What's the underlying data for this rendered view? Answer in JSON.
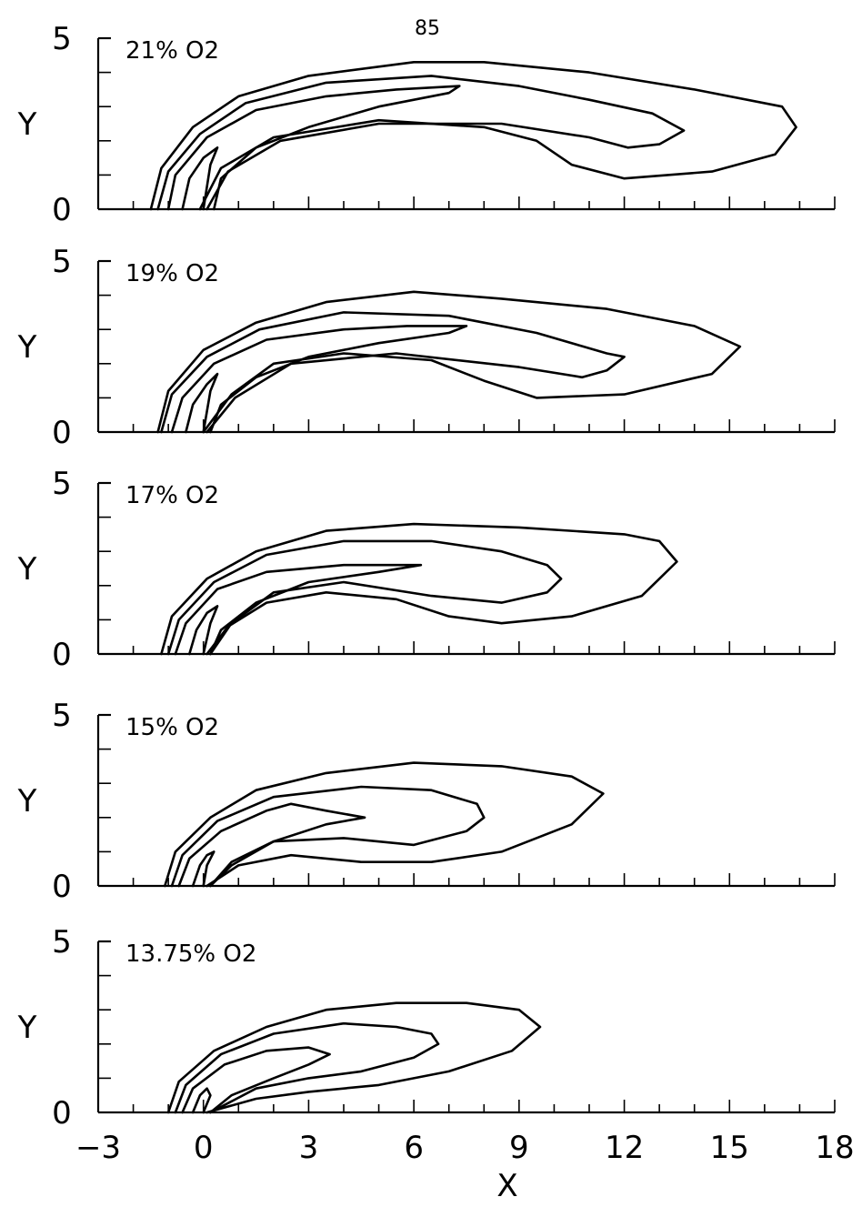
{
  "page_number": "85",
  "chart_data": [
    {
      "type": "contour",
      "annotation": "21% O2",
      "xlabel": "X",
      "ylabel": "Y",
      "xlim": [
        -3,
        18
      ],
      "ylim": [
        0,
        5
      ],
      "xticks": [
        -3,
        0,
        3,
        6,
        9,
        12,
        15,
        18
      ],
      "yticks": [
        0,
        5
      ],
      "contours": [
        [
          [
            -1.5,
            0
          ],
          [
            -1.2,
            1.2
          ],
          [
            -0.3,
            2.4
          ],
          [
            1.0,
            3.3
          ],
          [
            3.0,
            3.9
          ],
          [
            6.0,
            4.3
          ],
          [
            8.0,
            4.3
          ],
          [
            11.0,
            4.0
          ],
          [
            14.0,
            3.5
          ],
          [
            16.5,
            3.0
          ],
          [
            16.9,
            2.4
          ],
          [
            16.3,
            1.6
          ],
          [
            14.5,
            1.1
          ],
          [
            12.0,
            0.9
          ],
          [
            10.5,
            1.3
          ],
          [
            9.5,
            2.0
          ],
          [
            8.0,
            2.4
          ],
          [
            5.0,
            2.6
          ],
          [
            2.0,
            2.1
          ],
          [
            0.5,
            1.2
          ],
          [
            -0.1,
            0
          ]
        ],
        [
          [
            -1.3,
            0
          ],
          [
            -1.0,
            1.1
          ],
          [
            -0.1,
            2.2
          ],
          [
            1.2,
            3.1
          ],
          [
            3.5,
            3.7
          ],
          [
            6.5,
            3.9
          ],
          [
            9.0,
            3.6
          ],
          [
            11.0,
            3.2
          ],
          [
            12.8,
            2.8
          ],
          [
            13.7,
            2.3
          ],
          [
            13.0,
            1.9
          ],
          [
            12.1,
            1.8
          ],
          [
            11.0,
            2.1
          ],
          [
            8.5,
            2.5
          ],
          [
            5.0,
            2.5
          ],
          [
            2.2,
            2.0
          ],
          [
            0.7,
            1.1
          ],
          [
            0.1,
            0
          ]
        ],
        [
          [
            -1.0,
            0
          ],
          [
            -0.8,
            1.0
          ],
          [
            0.1,
            2.1
          ],
          [
            1.5,
            2.9
          ],
          [
            3.5,
            3.3
          ],
          [
            5.5,
            3.5
          ],
          [
            7.3,
            3.6
          ],
          [
            7.0,
            3.4
          ],
          [
            5.0,
            3.0
          ],
          [
            3.0,
            2.4
          ],
          [
            1.5,
            1.8
          ],
          [
            0.5,
            0.9
          ],
          [
            0.3,
            0
          ]
        ],
        [
          [
            -0.6,
            0
          ],
          [
            -0.4,
            0.9
          ],
          [
            0.0,
            1.5
          ],
          [
            0.4,
            1.8
          ],
          [
            0.2,
            1.3
          ],
          [
            0.0,
            0
          ]
        ]
      ]
    },
    {
      "type": "contour",
      "annotation": "19% O2",
      "xlabel": "X",
      "ylabel": "Y",
      "xlim": [
        -3,
        18
      ],
      "ylim": [
        0,
        5
      ],
      "xticks": [
        -3,
        0,
        3,
        6,
        9,
        12,
        15,
        18
      ],
      "yticks": [
        0,
        5
      ],
      "contours": [
        [
          [
            -1.3,
            0
          ],
          [
            -1.0,
            1.2
          ],
          [
            0.0,
            2.4
          ],
          [
            1.5,
            3.2
          ],
          [
            3.5,
            3.8
          ],
          [
            6.0,
            4.1
          ],
          [
            8.5,
            3.9
          ],
          [
            11.5,
            3.6
          ],
          [
            14.0,
            3.1
          ],
          [
            15.3,
            2.5
          ],
          [
            14.5,
            1.7
          ],
          [
            12.0,
            1.1
          ],
          [
            9.5,
            1.0
          ],
          [
            8.0,
            1.5
          ],
          [
            6.5,
            2.1
          ],
          [
            4.0,
            2.3
          ],
          [
            2.0,
            2.0
          ],
          [
            0.8,
            1.1
          ],
          [
            0.0,
            0
          ]
        ],
        [
          [
            -1.2,
            0
          ],
          [
            -0.9,
            1.1
          ],
          [
            0.1,
            2.2
          ],
          [
            1.6,
            3.0
          ],
          [
            4.0,
            3.5
          ],
          [
            7.0,
            3.4
          ],
          [
            9.5,
            2.9
          ],
          [
            11.5,
            2.3
          ],
          [
            12.0,
            2.2
          ],
          [
            11.5,
            1.8
          ],
          [
            10.8,
            1.6
          ],
          [
            9.0,
            1.9
          ],
          [
            5.5,
            2.3
          ],
          [
            2.5,
            2.0
          ],
          [
            0.9,
            1.0
          ],
          [
            0.1,
            0
          ]
        ],
        [
          [
            -0.9,
            0
          ],
          [
            -0.6,
            1.0
          ],
          [
            0.3,
            2.0
          ],
          [
            1.8,
            2.7
          ],
          [
            4.0,
            3.0
          ],
          [
            5.8,
            3.1
          ],
          [
            7.5,
            3.1
          ],
          [
            7.0,
            2.9
          ],
          [
            5.0,
            2.6
          ],
          [
            3.0,
            2.2
          ],
          [
            1.5,
            1.6
          ],
          [
            0.5,
            0.8
          ],
          [
            0.2,
            0
          ]
        ],
        [
          [
            -0.5,
            0
          ],
          [
            -0.3,
            0.8
          ],
          [
            0.1,
            1.4
          ],
          [
            0.4,
            1.7
          ],
          [
            0.2,
            1.2
          ],
          [
            0.0,
            0
          ]
        ]
      ]
    },
    {
      "type": "contour",
      "annotation": "17% O2",
      "xlabel": "X",
      "ylabel": "Y",
      "xlim": [
        -3,
        18
      ],
      "ylim": [
        0,
        5
      ],
      "xticks": [
        -3,
        0,
        3,
        6,
        9,
        12,
        15,
        18
      ],
      "yticks": [
        0,
        5
      ],
      "contours": [
        [
          [
            -1.2,
            0
          ],
          [
            -0.9,
            1.1
          ],
          [
            0.1,
            2.2
          ],
          [
            1.5,
            3.0
          ],
          [
            3.5,
            3.6
          ],
          [
            6.0,
            3.8
          ],
          [
            9.0,
            3.7
          ],
          [
            12.0,
            3.5
          ],
          [
            13.0,
            3.3
          ],
          [
            13.5,
            2.7
          ],
          [
            12.5,
            1.7
          ],
          [
            10.5,
            1.1
          ],
          [
            8.5,
            0.9
          ],
          [
            7.0,
            1.1
          ],
          [
            5.5,
            1.6
          ],
          [
            3.5,
            1.8
          ],
          [
            1.8,
            1.5
          ],
          [
            0.7,
            0.8
          ],
          [
            0.1,
            0
          ]
        ],
        [
          [
            -1.0,
            0
          ],
          [
            -0.7,
            1.0
          ],
          [
            0.3,
            2.1
          ],
          [
            1.8,
            2.9
          ],
          [
            4.0,
            3.3
          ],
          [
            6.5,
            3.3
          ],
          [
            8.5,
            3.0
          ],
          [
            9.8,
            2.6
          ],
          [
            10.2,
            2.2
          ],
          [
            9.8,
            1.8
          ],
          [
            8.5,
            1.5
          ],
          [
            6.5,
            1.7
          ],
          [
            4.0,
            2.1
          ],
          [
            2.0,
            1.8
          ],
          [
            0.8,
            0.9
          ],
          [
            0.2,
            0
          ]
        ],
        [
          [
            -0.8,
            0
          ],
          [
            -0.5,
            0.9
          ],
          [
            0.4,
            1.9
          ],
          [
            1.8,
            2.4
          ],
          [
            4.0,
            2.6
          ],
          [
            6.2,
            2.6
          ],
          [
            5.0,
            2.4
          ],
          [
            3.0,
            2.1
          ],
          [
            1.5,
            1.5
          ],
          [
            0.5,
            0.7
          ],
          [
            0.2,
            0
          ]
        ],
        [
          [
            -0.4,
            0
          ],
          [
            -0.2,
            0.7
          ],
          [
            0.1,
            1.2
          ],
          [
            0.4,
            1.4
          ],
          [
            0.2,
            0.9
          ],
          [
            0.0,
            0
          ]
        ]
      ]
    },
    {
      "type": "contour",
      "annotation": "15% O2",
      "xlabel": "X",
      "ylabel": "Y",
      "xlim": [
        -3,
        18
      ],
      "ylim": [
        0,
        5
      ],
      "xticks": [
        -3,
        0,
        3,
        6,
        9,
        12,
        15,
        18
      ],
      "yticks": [
        0,
        5
      ],
      "contours": [
        [
          [
            -1.1,
            0
          ],
          [
            -0.8,
            1.0
          ],
          [
            0.2,
            2.0
          ],
          [
            1.5,
            2.8
          ],
          [
            3.5,
            3.3
          ],
          [
            6.0,
            3.6
          ],
          [
            8.5,
            3.5
          ],
          [
            10.5,
            3.2
          ],
          [
            11.4,
            2.7
          ],
          [
            10.5,
            1.8
          ],
          [
            8.5,
            1.0
          ],
          [
            6.5,
            0.7
          ],
          [
            4.5,
            0.7
          ],
          [
            2.5,
            0.9
          ],
          [
            1.0,
            0.6
          ],
          [
            0.1,
            0
          ]
        ],
        [
          [
            -0.9,
            0
          ],
          [
            -0.6,
            0.9
          ],
          [
            0.4,
            1.9
          ],
          [
            2.0,
            2.6
          ],
          [
            4.5,
            2.9
          ],
          [
            6.5,
            2.8
          ],
          [
            7.8,
            2.4
          ],
          [
            8.0,
            2.0
          ],
          [
            7.5,
            1.6
          ],
          [
            6.0,
            1.2
          ],
          [
            4.0,
            1.4
          ],
          [
            2.0,
            1.3
          ],
          [
            0.8,
            0.7
          ],
          [
            0.2,
            0
          ]
        ],
        [
          [
            -0.7,
            0
          ],
          [
            -0.4,
            0.8
          ],
          [
            0.5,
            1.6
          ],
          [
            1.8,
            2.2
          ],
          [
            2.5,
            2.4
          ],
          [
            3.5,
            2.2
          ],
          [
            4.6,
            2.0
          ],
          [
            3.5,
            1.8
          ],
          [
            2.0,
            1.3
          ],
          [
            0.8,
            0.6
          ],
          [
            0.2,
            0
          ]
        ],
        [
          [
            -0.3,
            0
          ],
          [
            -0.1,
            0.6
          ],
          [
            0.1,
            0.9
          ],
          [
            0.3,
            1.0
          ],
          [
            0.1,
            0.6
          ],
          [
            0.0,
            0
          ]
        ]
      ]
    },
    {
      "type": "contour",
      "annotation": "13.75% O2",
      "xlabel": "X",
      "ylabel": "Y",
      "xlim": [
        -3,
        18
      ],
      "ylim": [
        0,
        5
      ],
      "xticks": [
        -3,
        0,
        3,
        6,
        9,
        12,
        15,
        18
      ],
      "yticks": [
        0,
        5
      ],
      "contours": [
        [
          [
            -1.0,
            0
          ],
          [
            -0.7,
            0.9
          ],
          [
            0.3,
            1.8
          ],
          [
            1.8,
            2.5
          ],
          [
            3.5,
            3.0
          ],
          [
            5.5,
            3.2
          ],
          [
            7.5,
            3.2
          ],
          [
            9.0,
            3.0
          ],
          [
            9.6,
            2.5
          ],
          [
            8.8,
            1.8
          ],
          [
            7.0,
            1.2
          ],
          [
            5.0,
            0.8
          ],
          [
            3.0,
            0.6
          ],
          [
            1.5,
            0.4
          ],
          [
            0.1,
            0
          ]
        ],
        [
          [
            -0.8,
            0
          ],
          [
            -0.5,
            0.8
          ],
          [
            0.5,
            1.7
          ],
          [
            2.0,
            2.3
          ],
          [
            4.0,
            2.6
          ],
          [
            5.5,
            2.5
          ],
          [
            6.5,
            2.3
          ],
          [
            6.7,
            2.0
          ],
          [
            6.0,
            1.6
          ],
          [
            4.5,
            1.2
          ],
          [
            3.0,
            1.0
          ],
          [
            1.5,
            0.7
          ],
          [
            0.2,
            0
          ]
        ],
        [
          [
            -0.6,
            0
          ],
          [
            -0.3,
            0.7
          ],
          [
            0.6,
            1.4
          ],
          [
            1.8,
            1.8
          ],
          [
            3.0,
            1.9
          ],
          [
            3.6,
            1.7
          ],
          [
            3.0,
            1.4
          ],
          [
            2.0,
            1.0
          ],
          [
            0.8,
            0.5
          ],
          [
            0.2,
            0
          ]
        ],
        [
          [
            -0.3,
            0
          ],
          [
            -0.1,
            0.5
          ],
          [
            0.1,
            0.7
          ],
          [
            0.2,
            0.5
          ],
          [
            0.0,
            0
          ]
        ]
      ]
    }
  ]
}
